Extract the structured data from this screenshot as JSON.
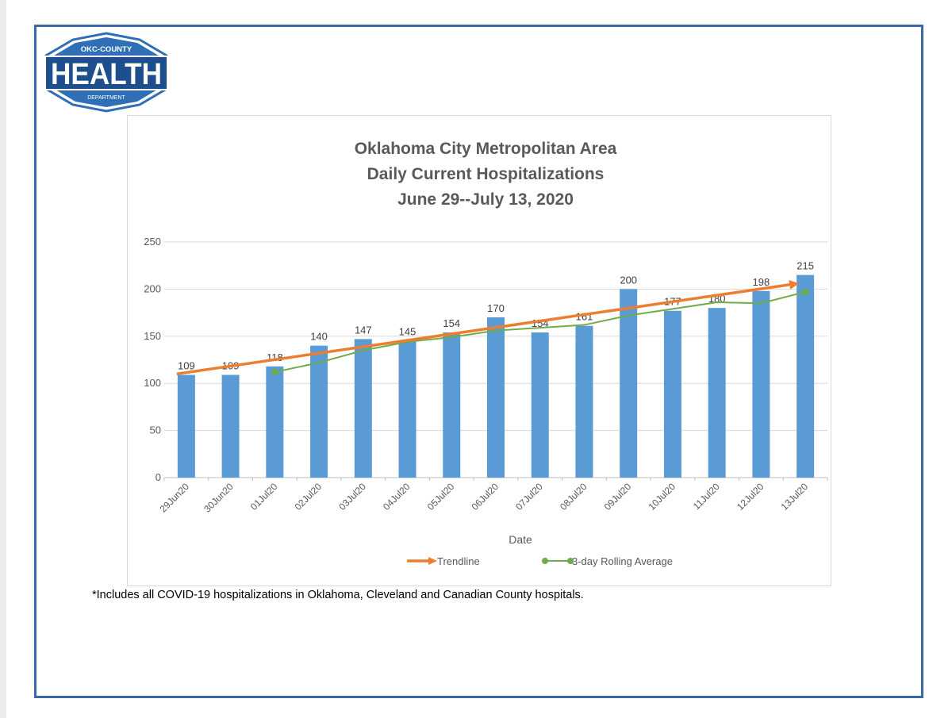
{
  "logo": {
    "top_text": "OKC-COUNTY",
    "main_text": "HEALTH",
    "bottom_text": "DEPARTMENT",
    "colors": {
      "blue": "#2f6fb5",
      "dark": "#1d4f8c"
    }
  },
  "footnote": "*Includes all COVID-19 hospitalizations in Oklahoma, Cleveland and Canadian County hospitals.",
  "chart_data": {
    "type": "bar",
    "title_lines": [
      "Oklahoma City Metropolitan Area",
      "Daily Current Hospitalizations",
      "June 29--July 13, 2020"
    ],
    "categories": [
      "29Jun20",
      "30Jun20",
      "01Jul20",
      "02Jul20",
      "03Jul20",
      "04Jul20",
      "05Jul20",
      "06Jul20",
      "07Jul20",
      "08Jul20",
      "09Jul20",
      "10Jul20",
      "11Jul20",
      "12Jul20",
      "13Jul20"
    ],
    "values": [
      109,
      109,
      118,
      140,
      147,
      145,
      154,
      170,
      154,
      161,
      200,
      177,
      180,
      198,
      215
    ],
    "value_labels": [
      "109",
      "109",
      "118",
      "140",
      "147",
      "145",
      "154",
      "170",
      "154",
      "161",
      "200",
      "177",
      "180",
      "198",
      "215"
    ],
    "trendline": {
      "name": "Trendline",
      "start": 110,
      "end": 206,
      "color": "#ed7d31"
    },
    "rolling_average": {
      "name": "3-day Rolling Average",
      "values": [
        null,
        null,
        112,
        122,
        135,
        144,
        149,
        156,
        159,
        162,
        172,
        179,
        186,
        185,
        197
      ],
      "color": "#70ad47"
    },
    "bar_color": "#5b9bd5",
    "xlabel": "Date",
    "ylabel": "",
    "ylim": [
      0,
      250
    ],
    "yticks": [
      "0",
      "50",
      "100",
      "150",
      "200",
      "250"
    ],
    "grid": true,
    "legend_position": "bottom"
  }
}
